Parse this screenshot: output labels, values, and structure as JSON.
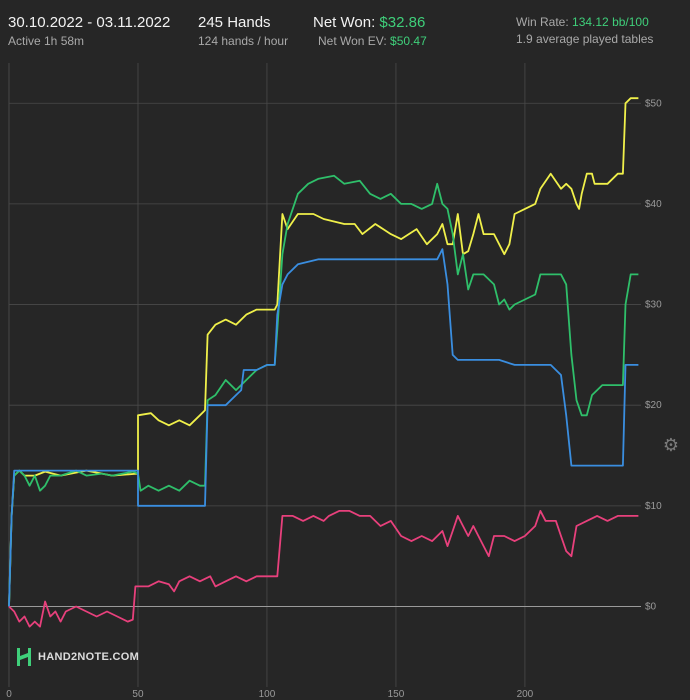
{
  "header": {
    "date_range": "30.10.2022 - 03.11.2022",
    "active_time": "Active 1h 58m",
    "hands": "245 Hands",
    "hands_per_hour": "124 hands / hour",
    "net_won_label": "Net Won:",
    "net_won_value": "$32.86",
    "net_won_ev_label": "Net Won  EV:",
    "net_won_ev_value": "$50.47",
    "win_rate_label": "Win Rate:",
    "win_rate_value": "134.12 bb/100",
    "avg_tables": "1.9 average played tables"
  },
  "logo": {
    "text": "HAND2NOTE.COM"
  },
  "settings_icon": "gear-icon",
  "colors": {
    "background": "#262626",
    "grid": "#4a4a4a",
    "zero_line": "#9a9a9a",
    "accent_green": "#3fcf7a"
  },
  "chart_data": {
    "type": "line",
    "xlim": [
      0,
      245
    ],
    "ylim": [
      -8,
      54
    ],
    "x_ticks": [
      0,
      50,
      100,
      150,
      200
    ],
    "y_ticks": [
      0,
      10,
      20,
      30,
      40,
      50
    ],
    "y_tick_labels": [
      "$0",
      "$10",
      "$20",
      "$30",
      "$40",
      "$50"
    ],
    "grid": true,
    "series": [
      {
        "color": "#f0f04a",
        "points": [
          [
            0,
            0
          ],
          [
            1,
            9
          ],
          [
            2,
            13
          ],
          [
            4,
            13.5
          ],
          [
            6,
            13
          ],
          [
            10,
            13
          ],
          [
            14,
            13.4
          ],
          [
            20,
            13
          ],
          [
            30,
            13.5
          ],
          [
            40,
            13
          ],
          [
            50,
            13.2
          ],
          [
            50,
            19
          ],
          [
            55,
            19.2
          ],
          [
            58,
            18.5
          ],
          [
            62,
            18
          ],
          [
            66,
            18.5
          ],
          [
            70,
            18
          ],
          [
            74,
            19
          ],
          [
            76,
            19.5
          ],
          [
            77,
            27
          ],
          [
            80,
            28
          ],
          [
            84,
            28.5
          ],
          [
            88,
            28
          ],
          [
            92,
            29
          ],
          [
            96,
            29.5
          ],
          [
            100,
            29.5
          ],
          [
            103,
            29.5
          ],
          [
            104,
            30
          ],
          [
            106,
            39
          ],
          [
            108,
            37.5
          ],
          [
            112,
            39
          ],
          [
            118,
            39
          ],
          [
            122,
            38.5
          ],
          [
            130,
            38
          ],
          [
            134,
            38
          ],
          [
            137,
            37
          ],
          [
            142,
            38
          ],
          [
            148,
            37
          ],
          [
            152,
            36.5
          ],
          [
            158,
            37.5
          ],
          [
            162,
            36
          ],
          [
            166,
            37
          ],
          [
            168,
            38
          ],
          [
            170,
            36
          ],
          [
            172,
            36
          ],
          [
            174,
            39
          ],
          [
            176,
            35
          ],
          [
            178,
            35.3
          ],
          [
            180,
            37
          ],
          [
            182,
            39
          ],
          [
            184,
            37
          ],
          [
            188,
            37
          ],
          [
            192,
            35
          ],
          [
            194,
            36
          ],
          [
            196,
            39
          ],
          [
            200,
            39.5
          ],
          [
            204,
            40
          ],
          [
            206,
            41.5
          ],
          [
            210,
            43
          ],
          [
            214,
            41.5
          ],
          [
            216,
            42
          ],
          [
            218,
            41.5
          ],
          [
            220,
            40
          ],
          [
            221,
            39.5
          ],
          [
            222,
            41
          ],
          [
            224,
            43
          ],
          [
            226,
            43
          ],
          [
            227,
            42
          ],
          [
            232,
            42
          ],
          [
            236,
            43
          ],
          [
            238,
            43
          ],
          [
            239,
            50
          ],
          [
            241,
            50.5
          ],
          [
            244,
            50.5
          ]
        ]
      },
      {
        "color": "#2fbf6a",
        "points": [
          [
            0,
            0
          ],
          [
            1,
            9
          ],
          [
            2,
            13
          ],
          [
            4,
            13.5
          ],
          [
            6,
            13
          ],
          [
            8,
            12
          ],
          [
            10,
            13
          ],
          [
            12,
            11.5
          ],
          [
            14,
            12
          ],
          [
            16,
            13
          ],
          [
            20,
            13
          ],
          [
            26,
            13.5
          ],
          [
            30,
            13
          ],
          [
            36,
            13.2
          ],
          [
            40,
            13
          ],
          [
            48,
            13.4
          ],
          [
            50,
            13.2
          ],
          [
            51,
            11.5
          ],
          [
            54,
            12
          ],
          [
            58,
            11.5
          ],
          [
            62,
            12
          ],
          [
            66,
            11.5
          ],
          [
            70,
            12.5
          ],
          [
            74,
            12
          ],
          [
            76,
            12
          ],
          [
            77,
            20.5
          ],
          [
            80,
            21
          ],
          [
            84,
            22.5
          ],
          [
            88,
            21.5
          ],
          [
            92,
            22.5
          ],
          [
            96,
            23.5
          ],
          [
            100,
            24
          ],
          [
            103,
            24
          ],
          [
            104,
            27.5
          ],
          [
            106,
            35
          ],
          [
            108,
            38
          ],
          [
            112,
            41
          ],
          [
            116,
            42
          ],
          [
            120,
            42.5
          ],
          [
            126,
            42.8
          ],
          [
            130,
            42
          ],
          [
            136,
            42.3
          ],
          [
            140,
            41
          ],
          [
            144,
            40.5
          ],
          [
            148,
            41
          ],
          [
            152,
            40
          ],
          [
            156,
            40
          ],
          [
            160,
            39.5
          ],
          [
            164,
            40
          ],
          [
            166,
            42
          ],
          [
            168,
            40
          ],
          [
            170,
            39.5
          ],
          [
            172,
            37
          ],
          [
            174,
            33
          ],
          [
            176,
            35
          ],
          [
            178,
            31.5
          ],
          [
            180,
            33
          ],
          [
            184,
            33
          ],
          [
            188,
            32
          ],
          [
            190,
            30
          ],
          [
            192,
            30.5
          ],
          [
            194,
            29.5
          ],
          [
            196,
            30
          ],
          [
            200,
            30.5
          ],
          [
            204,
            31
          ],
          [
            206,
            33
          ],
          [
            210,
            33
          ],
          [
            214,
            33
          ],
          [
            216,
            32
          ],
          [
            218,
            25
          ],
          [
            220,
            20.5
          ],
          [
            222,
            19
          ],
          [
            224,
            19
          ],
          [
            226,
            21
          ],
          [
            230,
            22
          ],
          [
            234,
            22
          ],
          [
            238,
            22
          ],
          [
            239,
            30
          ],
          [
            241,
            33
          ],
          [
            244,
            33
          ]
        ]
      },
      {
        "color": "#3a8ee0",
        "points": [
          [
            0,
            0
          ],
          [
            1,
            9
          ],
          [
            2,
            13.5
          ],
          [
            50,
            13.5
          ],
          [
            50,
            10
          ],
          [
            76,
            10
          ],
          [
            77,
            20
          ],
          [
            80,
            20
          ],
          [
            84,
            20
          ],
          [
            88,
            21
          ],
          [
            90,
            21.5
          ],
          [
            91,
            23.5
          ],
          [
            96,
            23.5
          ],
          [
            100,
            24
          ],
          [
            103,
            24
          ],
          [
            104,
            29
          ],
          [
            106,
            32
          ],
          [
            108,
            33
          ],
          [
            112,
            34
          ],
          [
            120,
            34.5
          ],
          [
            140,
            34.5
          ],
          [
            160,
            34.5
          ],
          [
            166,
            34.5
          ],
          [
            168,
            35.5
          ],
          [
            170,
            32
          ],
          [
            172,
            25
          ],
          [
            174,
            24.5
          ],
          [
            176,
            24.5
          ],
          [
            190,
            24.5
          ],
          [
            196,
            24
          ],
          [
            210,
            24
          ],
          [
            214,
            23
          ],
          [
            216,
            19
          ],
          [
            218,
            14
          ],
          [
            222,
            14
          ],
          [
            230,
            14
          ],
          [
            238,
            14
          ],
          [
            239,
            24
          ],
          [
            244,
            24
          ]
        ]
      },
      {
        "color": "#e8407c",
        "points": [
          [
            0,
            0
          ],
          [
            2,
            -0.5
          ],
          [
            4,
            -1.5
          ],
          [
            6,
            -1
          ],
          [
            8,
            -2
          ],
          [
            10,
            -1.5
          ],
          [
            12,
            -2
          ],
          [
            14,
            0.5
          ],
          [
            16,
            -1
          ],
          [
            18,
            -0.5
          ],
          [
            20,
            -1.5
          ],
          [
            22,
            -0.5
          ],
          [
            26,
            0
          ],
          [
            30,
            -0.5
          ],
          [
            34,
            -1
          ],
          [
            38,
            -0.5
          ],
          [
            42,
            -1
          ],
          [
            46,
            -1.5
          ],
          [
            48,
            -1.3
          ],
          [
            49,
            2
          ],
          [
            54,
            2
          ],
          [
            58,
            2.5
          ],
          [
            62,
            2.2
          ],
          [
            64,
            1.5
          ],
          [
            66,
            2.5
          ],
          [
            70,
            3
          ],
          [
            74,
            2.5
          ],
          [
            78,
            3
          ],
          [
            80,
            2
          ],
          [
            84,
            2.5
          ],
          [
            88,
            3
          ],
          [
            92,
            2.5
          ],
          [
            96,
            3
          ],
          [
            100,
            3
          ],
          [
            104,
            3
          ],
          [
            106,
            9
          ],
          [
            110,
            9
          ],
          [
            114,
            8.5
          ],
          [
            118,
            9
          ],
          [
            122,
            8.5
          ],
          [
            124,
            9
          ],
          [
            128,
            9.5
          ],
          [
            132,
            9.5
          ],
          [
            136,
            9
          ],
          [
            140,
            9
          ],
          [
            144,
            8
          ],
          [
            148,
            8.5
          ],
          [
            152,
            7
          ],
          [
            156,
            6.5
          ],
          [
            160,
            7
          ],
          [
            164,
            6.5
          ],
          [
            168,
            7.5
          ],
          [
            170,
            6
          ],
          [
            172,
            7.5
          ],
          [
            174,
            9
          ],
          [
            176,
            8
          ],
          [
            178,
            7
          ],
          [
            180,
            8
          ],
          [
            184,
            6
          ],
          [
            186,
            5
          ],
          [
            188,
            7
          ],
          [
            192,
            7
          ],
          [
            196,
            6.5
          ],
          [
            200,
            7
          ],
          [
            204,
            8
          ],
          [
            206,
            9.5
          ],
          [
            208,
            8.5
          ],
          [
            212,
            8.5
          ],
          [
            214,
            7
          ],
          [
            216,
            5.5
          ],
          [
            218,
            5
          ],
          [
            220,
            8
          ],
          [
            224,
            8.5
          ],
          [
            228,
            9
          ],
          [
            232,
            8.5
          ],
          [
            236,
            9
          ],
          [
            240,
            9
          ],
          [
            244,
            9
          ]
        ]
      }
    ]
  }
}
